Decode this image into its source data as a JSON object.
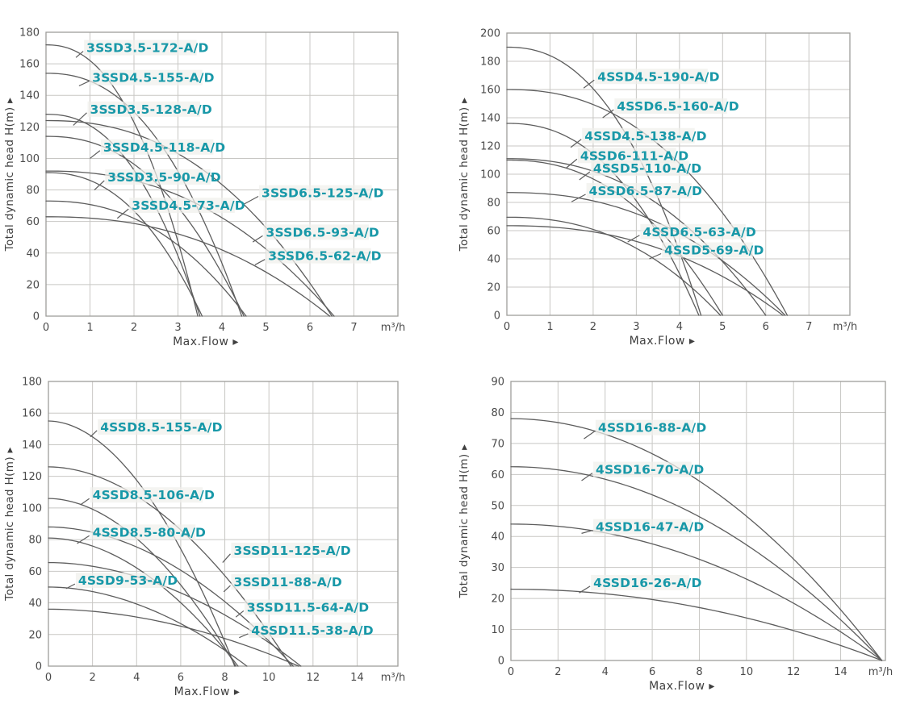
{
  "style": {
    "accent_teal": "#1898A8",
    "curve_color": "#5D5D5D",
    "grid_color": "#C8C7C4",
    "border_color": "#9E9D9A",
    "tick_text_color": "#4A4A4A",
    "axis_label_color": "#3F3F3F",
    "background": "#FFFFFF",
    "label_halo": "#F0F0EC"
  },
  "chart_data": [
    {
      "type": "line",
      "panel": "top-left",
      "xlabel": "Max.Flow ▸",
      "ylabel": "Total dynamic head H(m) ▸",
      "x_unit": "m³/h",
      "xlim": [
        0,
        8.0
      ],
      "ylim": [
        0,
        180
      ],
      "xticks": [
        0,
        1,
        2,
        3,
        4,
        5,
        6,
        7
      ],
      "yticks": [
        0,
        20,
        40,
        60,
        80,
        100,
        120,
        140,
        160,
        180
      ],
      "x_grid_step": 1,
      "y_grid_step": 20,
      "grid": true,
      "legend": "inline-curve-labels",
      "curve_exponent": 2.3,
      "series": [
        {
          "name": "3SSD3.5-172-A/D",
          "shutoff_head": 172,
          "max_flow": 3.45,
          "label_pos": [
            0.92,
            170
          ],
          "leader_to": [
            0.68,
            164
          ]
        },
        {
          "name": "3SSD4.5-155-A/D",
          "shutoff_head": 154,
          "max_flow": 4.45,
          "label_pos": [
            1.05,
            151
          ],
          "leader_to": [
            0.75,
            146
          ]
        },
        {
          "name": "3SSD3.5-128-A/D",
          "shutoff_head": 128,
          "max_flow": 3.5,
          "label_pos": [
            1.0,
            131
          ],
          "leader_to": [
            0.62,
            121
          ]
        },
        {
          "name": "3SSD6.5-125-A/D",
          "shutoff_head": 124,
          "max_flow": 6.5,
          "label_pos": [
            4.9,
            78
          ],
          "leader_to": [
            4.5,
            71
          ]
        },
        {
          "name": "3SSD4.5-118-A/D",
          "shutoff_head": 114,
          "max_flow": 4.5,
          "label_pos": [
            1.3,
            107
          ],
          "leader_to": [
            1.0,
            100
          ]
        },
        {
          "name": "3SSD3.5-90-A/D",
          "shutoff_head": 91,
          "max_flow": 3.55,
          "label_pos": [
            1.4,
            88
          ],
          "leader_to": [
            1.1,
            80
          ]
        },
        {
          "name": "3SSD6.5-93-A/D",
          "shutoff_head": 92,
          "max_flow": 6.55,
          "label_pos": [
            5.0,
            53
          ],
          "leader_to": [
            4.7,
            47
          ]
        },
        {
          "name": "3SSD4.5-73-A/D",
          "shutoff_head": 73,
          "max_flow": 4.55,
          "label_pos": [
            1.95,
            70
          ],
          "leader_to": [
            1.62,
            62
          ]
        },
        {
          "name": "3SSD6.5-62-A/D",
          "shutoff_head": 63,
          "max_flow": 6.45,
          "label_pos": [
            5.05,
            38
          ],
          "leader_to": [
            4.75,
            32.5
          ]
        }
      ]
    },
    {
      "type": "line",
      "panel": "top-right",
      "xlabel": "Max.Flow ▸",
      "ylabel": "Total dynamic head H(m) ▸",
      "x_unit": "m³/h",
      "xlim": [
        0,
        7.95
      ],
      "ylim": [
        0,
        200
      ],
      "xticks": [
        0,
        1,
        2,
        3,
        4,
        5,
        6,
        7
      ],
      "yticks": [
        0,
        20,
        40,
        60,
        80,
        100,
        120,
        140,
        160,
        180,
        200
      ],
      "x_grid_step": 1,
      "y_grid_step": 20,
      "grid": true,
      "legend": "inline-curve-labels",
      "curve_exponent": 2.3,
      "series": [
        {
          "name": "4SSD4.5-190-A/D",
          "shutoff_head": 190,
          "max_flow": 4.5,
          "label_pos": [
            2.1,
            169
          ],
          "leader_to": [
            1.78,
            161
          ]
        },
        {
          "name": "4SSD6.5-160-A/D",
          "shutoff_head": 160,
          "max_flow": 6.5,
          "label_pos": [
            2.55,
            148
          ],
          "leader_to": [
            2.22,
            140
          ]
        },
        {
          "name": "4SSD4.5-138-A/D",
          "shutoff_head": 136,
          "max_flow": 4.45,
          "label_pos": [
            1.8,
            127
          ],
          "leader_to": [
            1.48,
            119
          ]
        },
        {
          "name": "4SSD6-111-A/D",
          "shutoff_head": 111,
          "max_flow": 6.0,
          "label_pos": [
            1.7,
            113
          ],
          "leader_to": [
            1.38,
            104.5
          ]
        },
        {
          "name": "4SSD5-110-A/D",
          "shutoff_head": 110,
          "max_flow": 5.0,
          "label_pos": [
            2.0,
            104
          ],
          "leader_to": [
            1.68,
            96
          ]
        },
        {
          "name": "4SSD6.5-87-A/D",
          "shutoff_head": 87,
          "max_flow": 6.45,
          "label_pos": [
            1.9,
            88
          ],
          "leader_to": [
            1.5,
            80.5
          ]
        },
        {
          "name": "4SSD6.5-63-A/D",
          "shutoff_head": 63.5,
          "max_flow": 6.4,
          "label_pos": [
            3.15,
            59
          ],
          "leader_to": [
            2.8,
            52
          ]
        },
        {
          "name": "4SSD5-69-A/D",
          "shutoff_head": 69.5,
          "max_flow": 4.95,
          "label_pos": [
            3.65,
            46
          ],
          "leader_to": [
            3.3,
            40
          ]
        }
      ]
    },
    {
      "type": "line",
      "panel": "bottom-left",
      "xlabel": "Max.Flow ▸",
      "ylabel": "Total dynamic head H(m) ▸",
      "x_unit": "m³/h",
      "xlim": [
        0,
        15.85
      ],
      "ylim": [
        0,
        180
      ],
      "xticks": [
        0,
        2,
        4,
        6,
        8,
        10,
        12,
        14
      ],
      "yticks": [
        0,
        20,
        40,
        60,
        80,
        100,
        120,
        140,
        160,
        180
      ],
      "x_grid_step": 2,
      "y_grid_step": 20,
      "grid": true,
      "legend": "inline-curve-labels",
      "curve_exponent": 1.9,
      "series": [
        {
          "name": "4SSD8.5-155-A/D",
          "shutoff_head": 155,
          "max_flow": 8.45,
          "label_pos": [
            2.35,
            151
          ],
          "leader_to": [
            1.9,
            145
          ]
        },
        {
          "name": "4SSD8.5-106-A/D",
          "shutoff_head": 106,
          "max_flow": 8.5,
          "label_pos": [
            2.0,
            108
          ],
          "leader_to": [
            1.45,
            102
          ]
        },
        {
          "name": "4SSD8.5-80-A/D",
          "shutoff_head": 81,
          "max_flow": 8.6,
          "label_pos": [
            2.0,
            84.5
          ],
          "leader_to": [
            1.3,
            77.5
          ]
        },
        {
          "name": "4SSD9-53-A/D",
          "shutoff_head": 50,
          "max_flow": 9.0,
          "label_pos": [
            1.35,
            54
          ],
          "leader_to": [
            0.8,
            49
          ]
        },
        {
          "name": "3SSD11-125-A/D",
          "shutoff_head": 126,
          "max_flow": 11.0,
          "label_pos": [
            8.4,
            73
          ],
          "leader_to": [
            7.9,
            65.5
          ]
        },
        {
          "name": "3SSD11-88-A/D",
          "shutoff_head": 88,
          "max_flow": 11.1,
          "label_pos": [
            8.4,
            53
          ],
          "leader_to": [
            7.95,
            47
          ]
        },
        {
          "name": "3SSD11.5-64-A/D",
          "shutoff_head": 65.5,
          "max_flow": 11.45,
          "label_pos": [
            9.0,
            37
          ],
          "leader_to": [
            8.5,
            31
          ]
        },
        {
          "name": "4SSD11.5-38-A/D",
          "shutoff_head": 36,
          "max_flow": 11.35,
          "label_pos": [
            9.2,
            22.5
          ],
          "leader_to": [
            8.65,
            18
          ]
        }
      ]
    },
    {
      "type": "line",
      "panel": "bottom-right",
      "xlabel": "Max.Flow ▸",
      "ylabel": "Total dynamic head H(m) ▸",
      "x_unit": "m³/h",
      "xlim": [
        0,
        15.9
      ],
      "ylim": [
        0,
        90
      ],
      "xticks": [
        0,
        2,
        4,
        6,
        8,
        10,
        12,
        14
      ],
      "yticks": [
        0,
        10,
        20,
        30,
        40,
        50,
        60,
        70,
        80,
        90
      ],
      "x_grid_step": 2,
      "y_grid_step": 10,
      "grid": true,
      "legend": "inline-curve-labels",
      "curve_exponent": 2.0,
      "series": [
        {
          "name": "4SSD16-88-A/D",
          "shutoff_head": 78,
          "max_flow": 15.75,
          "label_pos": [
            3.7,
            75
          ],
          "leader_to": [
            3.1,
            71.5
          ]
        },
        {
          "name": "4SSD16-70-A/D",
          "shutoff_head": 62.5,
          "max_flow": 15.75,
          "label_pos": [
            3.6,
            61.5
          ],
          "leader_to": [
            3.0,
            58
          ]
        },
        {
          "name": "4SSD16-47-A/D",
          "shutoff_head": 44,
          "max_flow": 15.75,
          "label_pos": [
            3.6,
            43
          ],
          "leader_to": [
            3.0,
            41
          ]
        },
        {
          "name": "4SSD16-26-A/D",
          "shutoff_head": 23,
          "max_flow": 15.75,
          "label_pos": [
            3.5,
            25
          ],
          "leader_to": [
            2.9,
            21.8
          ]
        }
      ]
    }
  ]
}
